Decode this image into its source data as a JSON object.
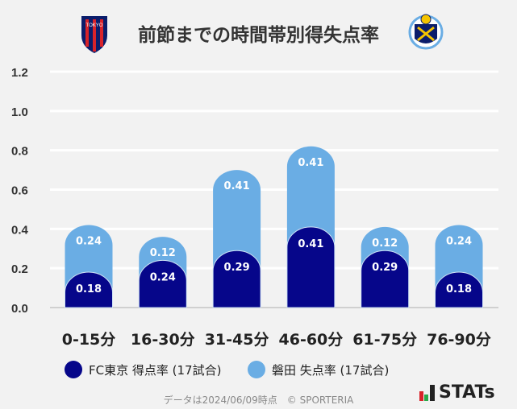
{
  "title": "前節までの時間帯別得失点率",
  "logos": {
    "left": "FC TOKYO",
    "right": "Jubilo Iwata"
  },
  "chart_data": {
    "type": "bar",
    "stacked": true,
    "title": "前節までの時間帯別得失点率",
    "categories": [
      "0-15分",
      "16-30分",
      "31-45分",
      "46-60分",
      "61-75分",
      "76-90分"
    ],
    "series": [
      {
        "name": "FC東京 得点率 (17試合)",
        "color": "#06068a",
        "values": [
          0.18,
          0.24,
          0.29,
          0.41,
          0.29,
          0.18
        ]
      },
      {
        "name": "磐田 失点率 (17試合)",
        "color": "#6aade4",
        "values": [
          0.24,
          0.12,
          0.41,
          0.41,
          0.12,
          0.24
        ]
      }
    ],
    "ylim": [
      0,
      1.2
    ],
    "yticks": [
      "0.0",
      "0.2",
      "0.4",
      "0.6",
      "0.8",
      "1.0",
      "1.2"
    ],
    "grid": true,
    "legend": "bottom"
  },
  "footer": {
    "note": "データは2024/06/09時点　© SPORTERIA",
    "brand": "STATs"
  }
}
